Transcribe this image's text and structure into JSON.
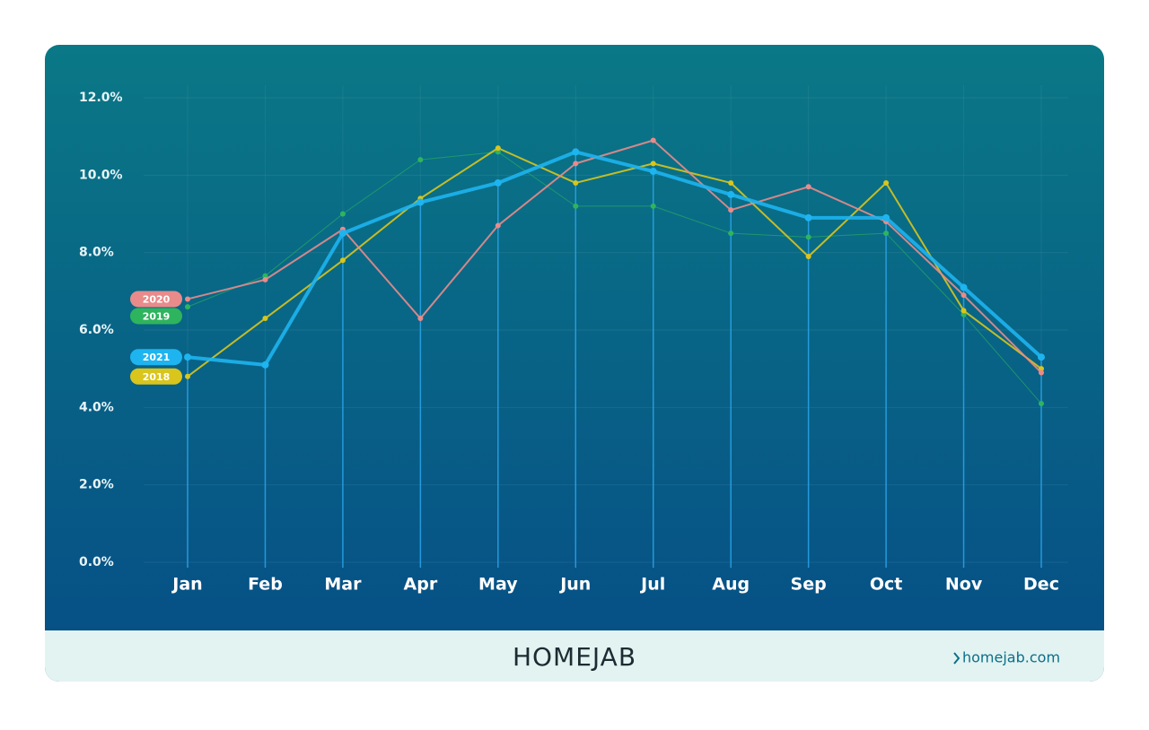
{
  "chart_data": {
    "type": "line",
    "categories": [
      "Jan",
      "Feb",
      "Mar",
      "Apr",
      "May",
      "Jun",
      "Jul",
      "Aug",
      "Sep",
      "Oct",
      "Nov",
      "Dec"
    ],
    "series": [
      {
        "name": "2019",
        "color": "#2fb45e",
        "values": [
          6.6,
          7.4,
          9.0,
          10.4,
          10.6,
          9.2,
          9.2,
          8.5,
          8.4,
          8.5,
          6.4,
          4.1
        ]
      },
      {
        "name": "2018",
        "color": "#d9c51c",
        "values": [
          4.8,
          6.3,
          7.8,
          9.4,
          10.7,
          9.8,
          10.3,
          9.8,
          7.9,
          9.8,
          6.5,
          5.0
        ]
      },
      {
        "name": "2020",
        "color": "#e98b8b",
        "values": [
          6.8,
          7.3,
          8.6,
          6.3,
          8.7,
          10.3,
          10.9,
          9.1,
          9.7,
          8.8,
          6.9,
          4.9
        ]
      },
      {
        "name": "2021",
        "color": "#1eb4f0",
        "values": [
          5.3,
          5.1,
          8.5,
          9.3,
          9.8,
          10.6,
          10.1,
          9.5,
          8.9,
          8.9,
          7.1,
          5.3
        ]
      }
    ],
    "ylim": [
      0,
      12
    ],
    "yticks": [
      {
        "value": 0,
        "label": "0.0%"
      },
      {
        "value": 2,
        "label": "2.0%"
      },
      {
        "value": 4,
        "label": "4.0%"
      },
      {
        "value": 6,
        "label": "6.0%"
      },
      {
        "value": 8,
        "label": "8.0%"
      },
      {
        "value": 10,
        "label": "10.0%"
      },
      {
        "value": 12,
        "label": "12.0%"
      }
    ],
    "grid": true
  },
  "footer": {
    "logo": "HOMEJAB",
    "link": "homejab.com"
  }
}
